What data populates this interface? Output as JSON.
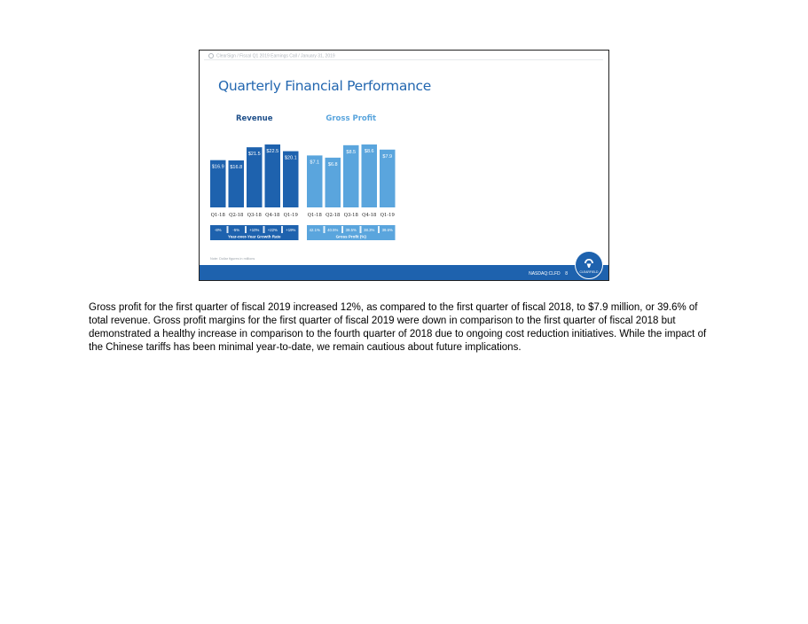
{
  "slide": {
    "breadcrumb": "ClearSign / Fiscal Q1 2019 Earnings Call / January 31, 2019",
    "title": "Quarterly Financial Performance",
    "note": "Note: Dollar figures in millions",
    "footer_ticker": "NASDAQ:CLFD",
    "page_number": "8",
    "logo_text": "CLEARFIELD"
  },
  "colors": {
    "revenue_bar": "#1e62ae",
    "gross_profit_bar": "#5aa5dd",
    "title_blue": "#2367b0",
    "footer_blue": "#1e62ae"
  },
  "chart_data": [
    {
      "type": "bar",
      "title": "Revenue",
      "categories": [
        "Q1-18",
        "Q2-18",
        "Q3-18",
        "Q4-18",
        "Q1-19"
      ],
      "values": [
        16.9,
        16.8,
        21.5,
        22.5,
        20.1
      ],
      "value_labels": [
        "$16.9",
        "$16.8",
        "$21.5",
        "$22.5",
        "$20.1"
      ],
      "subtable_values": [
        "-8%",
        "-5%",
        "+10%",
        "+22%",
        "+19%"
      ],
      "subtable_label": "Year-over-Year Growth Rate",
      "ylim": [
        0,
        22.5
      ]
    },
    {
      "type": "bar",
      "title": "Gross Profit",
      "categories": [
        "Q1-18",
        "Q2-18",
        "Q3-18",
        "Q4-18",
        "Q1-19"
      ],
      "values": [
        7.1,
        6.8,
        8.5,
        8.6,
        7.9
      ],
      "value_labels": [
        "$7.1",
        "$6.8",
        "$8.5",
        "$8.6",
        "$7.9"
      ],
      "subtable_values": [
        "42.1%",
        "40.5%",
        "39.5%",
        "38.3%",
        "39.6%"
      ],
      "subtable_label": "Gross Profit (%)",
      "ylim": [
        0,
        8.6
      ]
    }
  ],
  "paragraph": "Gross profit for the first quarter of fiscal 2019 increased 12%, as compared to the first quarter of fiscal 2018, to $7.9 million, or 39.6% of total revenue. Gross profit margins for the first quarter of fiscal 2019 were down in comparison to the first quarter of fiscal 2018 but demonstrated a healthy increase in comparison to the fourth quarter of 2018 due to ongoing cost reduction initiatives. While the impact of the Chinese tariffs has been minimal year-to-date, we remain cautious about future implications."
}
